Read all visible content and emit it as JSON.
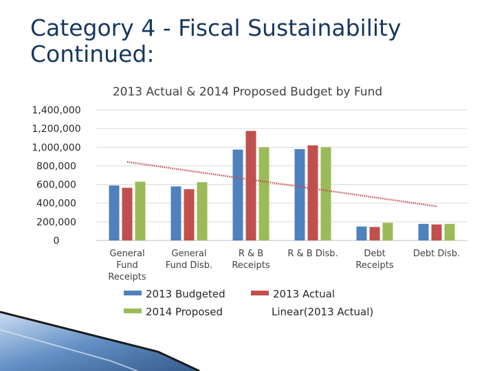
{
  "slide": {
    "title_line1": "Category 4 -  Fiscal Sustainability",
    "title_line2": "Continued:"
  },
  "chart_data": {
    "type": "bar",
    "title": "2013 Actual & 2014 Proposed Budget by Fund",
    "categories": [
      [
        "General",
        "Fund",
        "Receipts"
      ],
      [
        "General",
        "Fund Disb."
      ],
      [
        "R & B",
        "Receipts"
      ],
      [
        "R & B Disb."
      ],
      [
        "Debt",
        "Receipts"
      ],
      [
        "Debt Disb."
      ]
    ],
    "series": [
      {
        "name": "2013 Budgeted",
        "color": "#4f81bd",
        "values": [
          590000,
          580000,
          975000,
          980000,
          150000,
          178000
        ]
      },
      {
        "name": "2013 Actual",
        "color": "#c0504d",
        "values": [
          565000,
          550000,
          1175000,
          1020000,
          145000,
          172000
        ]
      },
      {
        "name": "2014 Proposed",
        "color": "#9bbb59",
        "values": [
          630000,
          625000,
          1000000,
          1000000,
          190000,
          178000
        ]
      }
    ],
    "trendline": {
      "name": "Linear(2013 Actual)",
      "color": "#c0504d",
      "based_on": "2013 Actual"
    },
    "yticks": [
      "1,400,000",
      "1,200,000",
      "1,000,000",
      "800,000",
      "600,000",
      "400,000",
      "200,000",
      "0"
    ],
    "ylim": [
      0,
      1400000
    ],
    "xlabel": "",
    "ylabel": "",
    "grid": true,
    "legend_placement": "bottom"
  }
}
